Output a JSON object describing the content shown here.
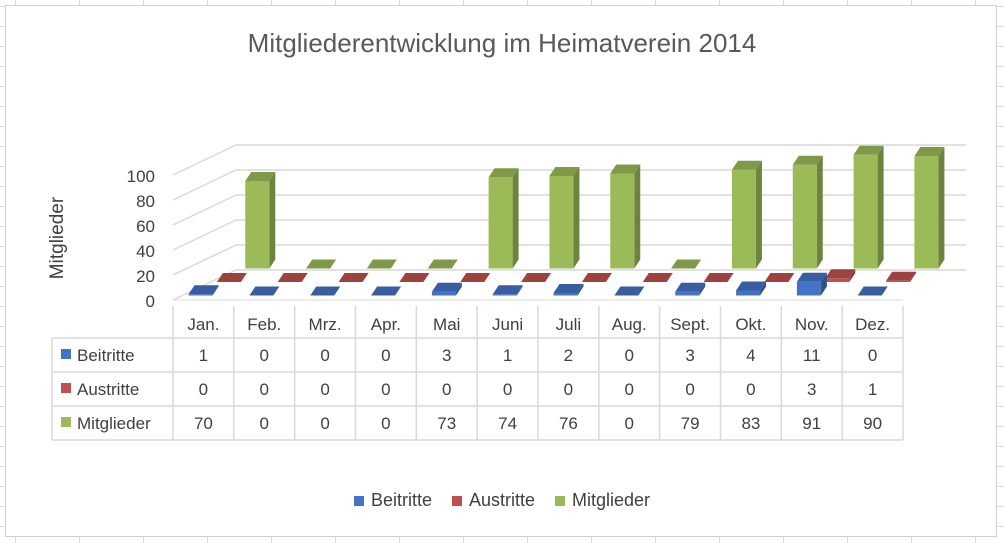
{
  "chart_data": {
    "type": "bar",
    "title": "Mitgliederentwicklung im Heimatverein 2014",
    "ylabel": "Mitglieder",
    "xlabel": "",
    "ylim": [
      0,
      100
    ],
    "yticks": [
      0,
      20,
      40,
      60,
      80,
      100
    ],
    "categories": [
      "Jan.",
      "Feb.",
      "Mrz.",
      "Apr.",
      "Mai",
      "Juni",
      "Juli",
      "Aug.",
      "Sept.",
      "Okt.",
      "Nov.",
      "Dez."
    ],
    "series": [
      {
        "name": "Beitritte",
        "color": "#4472c4",
        "values": [
          1,
          0,
          0,
          0,
          3,
          1,
          2,
          0,
          3,
          4,
          11,
          0
        ]
      },
      {
        "name": "Austritte",
        "color": "#c0504d",
        "values": [
          0,
          0,
          0,
          0,
          0,
          0,
          0,
          0,
          0,
          0,
          3,
          1
        ]
      },
      {
        "name": "Mitglieder",
        "color": "#9bbb59",
        "values": [
          70,
          0,
          0,
          0,
          73,
          74,
          76,
          0,
          79,
          83,
          91,
          90
        ]
      }
    ],
    "grid": true,
    "data_table": true,
    "legend_position": "bottom"
  }
}
